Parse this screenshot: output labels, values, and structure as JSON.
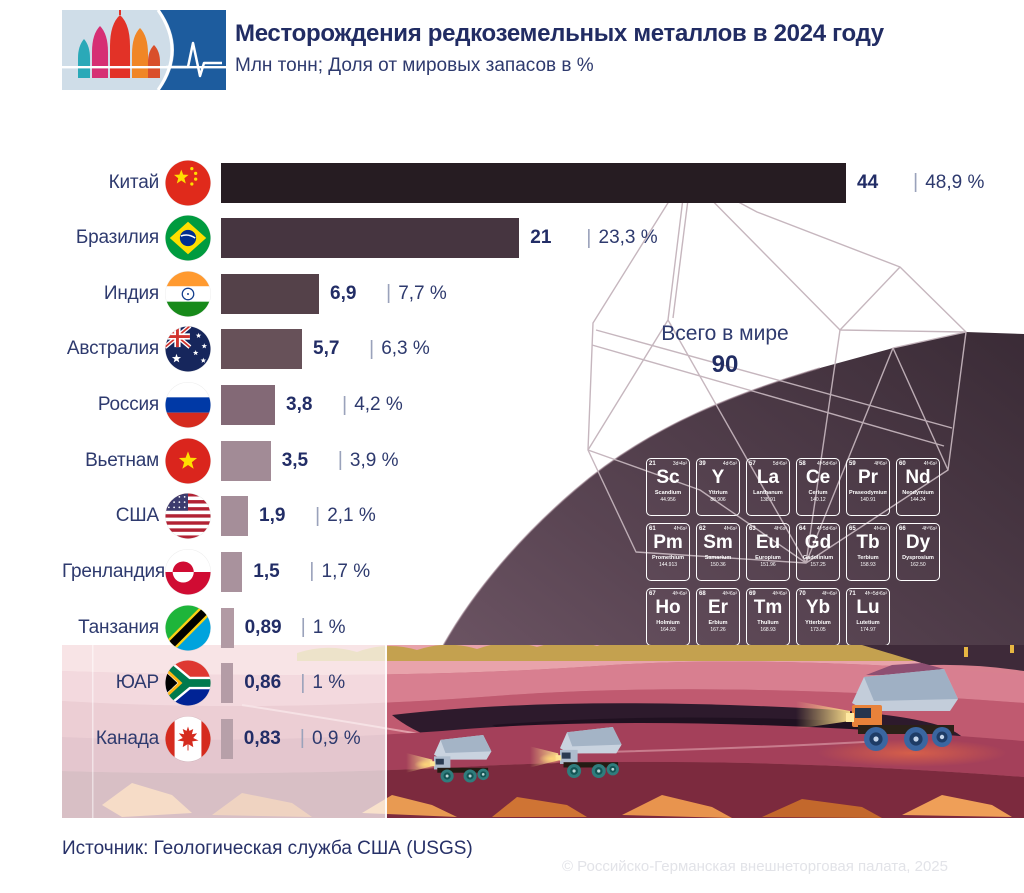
{
  "header": {
    "title": "Месторождения редкоземельных металлов в 2024 году",
    "subtitle": "Млн тонн; Доля от мировых запасов в %"
  },
  "colors": {
    "accent_navy": "#212c63",
    "logo_blue": "#1d5c9e",
    "dome_plum": "#55424c",
    "wireframe": "#c3b3bb"
  },
  "chart_data": {
    "type": "bar",
    "orientation": "horizontal",
    "title": "Месторождения редкоземельных металлов в 2024 году",
    "unit": "млн тонн",
    "secondary_unit": "доля от мировых запасов в %",
    "xlim": [
      0,
      44
    ],
    "grid": false,
    "legend": "none",
    "categories": [
      "Китай",
      "Бразилия",
      "Индия",
      "Австралия",
      "Россия",
      "Вьетнам",
      "США",
      "Гренландия",
      "Танзания",
      "ЮАР",
      "Канада"
    ],
    "total_label": "Всего в мире",
    "total_value": "90",
    "rows": [
      {
        "key": "china",
        "country": "Китай",
        "flag": "cn",
        "value": 44,
        "value_label": "44",
        "percent_label": "48,9 %",
        "color": "#261c22"
      },
      {
        "key": "brazil",
        "country": "Бразилия",
        "flag": "br",
        "value": 21,
        "value_label": "21",
        "percent_label": "23,3 %",
        "color": "#463540"
      },
      {
        "key": "india",
        "country": "Индия",
        "flag": "in",
        "value": 6.9,
        "value_label": "6,9",
        "percent_label": "7,7 %",
        "color": "#544149"
      },
      {
        "key": "australia",
        "country": "Австралия",
        "flag": "au",
        "value": 5.7,
        "value_label": "5,7",
        "percent_label": "6,3 %",
        "color": "#675159"
      },
      {
        "key": "russia",
        "country": "Россия",
        "flag": "ru",
        "value": 3.8,
        "value_label": "3,8",
        "percent_label": "4,2 %",
        "color": "#836976"
      },
      {
        "key": "vietnam",
        "country": "Вьетнам",
        "flag": "vn",
        "value": 3.5,
        "value_label": "3,5",
        "percent_label": "3,9 %",
        "color": "#a28b96"
      },
      {
        "key": "usa",
        "country": "США",
        "flag": "us",
        "value": 1.9,
        "value_label": "1,9",
        "percent_label": "2,1 %",
        "color": "#a58e99"
      },
      {
        "key": "greenland",
        "country": "Гренландия",
        "flag": "gl",
        "value": 1.5,
        "value_label": "1,5",
        "percent_label": "1,7 %",
        "color": "#a9929d"
      },
      {
        "key": "tanzania",
        "country": "Танзания",
        "flag": "tz",
        "value": 0.89,
        "value_label": "0,89",
        "percent_label": "1 %",
        "color": "#b29aa4"
      },
      {
        "key": "south-africa",
        "country": "ЮАР",
        "flag": "za",
        "value": 0.86,
        "value_label": "0,86",
        "percent_label": "1 %",
        "color": "#b49ca6"
      },
      {
        "key": "canada",
        "country": "Канада",
        "flag": "ca",
        "value": 0.83,
        "value_label": "0,83",
        "percent_label": "0,9 %",
        "color": "#b7a0a9"
      }
    ]
  },
  "periodic_table": {
    "rows": [
      [
        {
          "num": "21",
          "symbol": "Sc",
          "name": "Scandium",
          "mass": "44.956",
          "config": "3d¹4s²"
        },
        {
          "num": "39",
          "symbol": "Y",
          "name": "Yttrium",
          "mass": "88.906",
          "config": "4d¹5s²"
        },
        {
          "num": "57",
          "symbol": "La",
          "name": "Lanthanum",
          "mass": "138.91",
          "config": "5d¹6s²"
        },
        {
          "num": "58",
          "symbol": "Ce",
          "name": "Cerium",
          "mass": "140.12",
          "config": "4f¹5d¹6s²"
        },
        {
          "num": "59",
          "symbol": "Pr",
          "name": "Praseodymium",
          "mass": "140.91",
          "config": "4f³6s²"
        },
        {
          "num": "60",
          "symbol": "Nd",
          "name": "Neodymium",
          "mass": "144.24",
          "config": "4f⁴6s²"
        }
      ],
      [
        {
          "num": "61",
          "symbol": "Pm",
          "name": "Promethium",
          "mass": "144.913",
          "config": "4f⁵6s²"
        },
        {
          "num": "62",
          "symbol": "Sm",
          "name": "Samarium",
          "mass": "150.36",
          "config": "4f⁶6s²"
        },
        {
          "num": "63",
          "symbol": "Eu",
          "name": "Europium",
          "mass": "151.96",
          "config": "4f⁷6s²"
        },
        {
          "num": "64",
          "symbol": "Gd",
          "name": "Gadolinium",
          "mass": "157.25",
          "config": "4f⁷5d¹6s²"
        },
        {
          "num": "65",
          "symbol": "Tb",
          "name": "Terbium",
          "mass": "158.93",
          "config": "4f⁹6s²"
        },
        {
          "num": "66",
          "symbol": "Dy",
          "name": "Dysprosium",
          "mass": "162.50",
          "config": "4f¹⁰6s²"
        }
      ],
      [
        {
          "num": "67",
          "symbol": "Ho",
          "name": "Holmium",
          "mass": "164.93",
          "config": "4f¹¹6s²"
        },
        {
          "num": "68",
          "symbol": "Er",
          "name": "Erbium",
          "mass": "167.26",
          "config": "4f¹²6s²"
        },
        {
          "num": "69",
          "symbol": "Tm",
          "name": "Thulium",
          "mass": "168.93",
          "config": "4f¹³6s²"
        },
        {
          "num": "70",
          "symbol": "Yb",
          "name": "Ytterbium",
          "mass": "173.05",
          "config": "4f¹⁴6s²"
        },
        {
          "num": "71",
          "symbol": "Lu",
          "name": "Lutetium",
          "mass": "174.97",
          "config": "4f¹⁴5d¹6s²"
        }
      ]
    ]
  },
  "footer": {
    "source": "Источник: Геологическая служба США (USGS)",
    "copyright": "© Российско-Германская внешнеторговая палата, 2025"
  }
}
